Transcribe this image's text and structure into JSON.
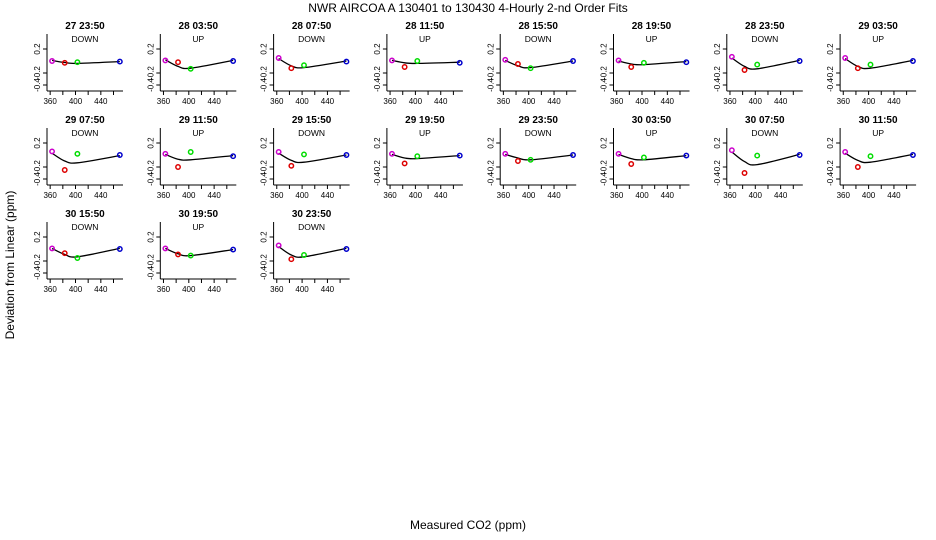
{
  "title": "NWR   AIRCOA A   130401 to 130430   4-Hourly 2-nd Order Fits",
  "xlabel": "Measured CO2 (ppm)",
  "ylabel": "Deviation from Linear (ppm)",
  "colors": {
    "axis": "#000000",
    "curve": "#000000",
    "standard_colors": [
      "#cc00cc",
      "#dd0000",
      "#00dd00",
      "#0000cc"
    ]
  },
  "chart_data": {
    "type": "scatter",
    "layout": "grid 8 columns",
    "xlim": [
      355,
      475
    ],
    "ylim": [
      -0.5,
      0.45
    ],
    "x_ticks": [
      360,
      400,
      440
    ],
    "x_tick_labels": [
      "360",
      "400",
      "440"
    ],
    "x_minor_ticks": [
      380,
      420,
      460
    ],
    "y_ticks": [
      0.2,
      -0.2,
      -0.4
    ],
    "y_tick_labels": [
      "0.2",
      "-0.2",
      "-0.4"
    ],
    "standards_x": [
      363,
      383,
      403,
      470
    ],
    "panels": [
      {
        "title": "27 23:50",
        "direction": "DOWN",
        "points": [
          0.0,
          -0.03,
          -0.02,
          -0.01
        ],
        "curve": [
          0.01,
          -0.025,
          -0.04,
          -0.01
        ]
      },
      {
        "title": "28 03:50",
        "direction": "UP",
        "points": [
          0.01,
          -0.02,
          -0.13,
          0.0
        ],
        "curve": [
          0.02,
          -0.09,
          -0.12,
          0.01
        ]
      },
      {
        "title": "28 07:50",
        "direction": "DOWN",
        "points": [
          0.05,
          -0.12,
          -0.07,
          -0.01
        ],
        "curve": [
          0.04,
          -0.08,
          -0.11,
          0.0
        ]
      },
      {
        "title": "28 11:50",
        "direction": "UP",
        "points": [
          0.01,
          -0.1,
          0.0,
          -0.03
        ],
        "curve": [
          0.01,
          -0.03,
          -0.04,
          -0.02
        ]
      },
      {
        "title": "28 15:50",
        "direction": "DOWN",
        "points": [
          0.02,
          -0.05,
          -0.12,
          0.0
        ],
        "curve": [
          0.01,
          -0.08,
          -0.11,
          0.0
        ]
      },
      {
        "title": "28 19:50",
        "direction": "UP",
        "points": [
          0.01,
          -0.1,
          -0.03,
          -0.02
        ],
        "curve": [
          0.0,
          -0.05,
          -0.06,
          -0.01
        ]
      },
      {
        "title": "28 23:50",
        "direction": "DOWN",
        "points": [
          0.07,
          -0.15,
          -0.06,
          0.0
        ],
        "curve": [
          0.05,
          -0.09,
          -0.13,
          0.01
        ]
      },
      {
        "title": "29 03:50",
        "direction": "UP",
        "points": [
          0.05,
          -0.12,
          -0.06,
          0.0
        ],
        "curve": [
          0.04,
          -0.09,
          -0.12,
          0.01
        ]
      },
      {
        "title": "29 07:50",
        "direction": "DOWN",
        "points": [
          0.06,
          -0.25,
          0.02,
          0.0
        ],
        "curve": [
          0.03,
          -0.1,
          -0.13,
          -0.01
        ]
      },
      {
        "title": "29 11:50",
        "direction": "UP",
        "points": [
          0.02,
          -0.2,
          0.05,
          -0.02
        ],
        "curve": [
          0.01,
          -0.07,
          -0.08,
          -0.01
        ]
      },
      {
        "title": "29 15:50",
        "direction": "DOWN",
        "points": [
          0.05,
          -0.18,
          0.01,
          0.0
        ],
        "curve": [
          0.03,
          -0.09,
          -0.12,
          0.0
        ]
      },
      {
        "title": "29 19:50",
        "direction": "UP",
        "points": [
          0.02,
          -0.14,
          -0.02,
          -0.01
        ],
        "curve": [
          0.01,
          -0.05,
          -0.06,
          -0.01
        ]
      },
      {
        "title": "29 23:50",
        "direction": "DOWN",
        "points": [
          0.02,
          -0.1,
          -0.08,
          0.0
        ],
        "curve": [
          0.01,
          -0.05,
          -0.08,
          0.0
        ]
      },
      {
        "title": "30 03:50",
        "direction": "UP",
        "points": [
          0.02,
          -0.15,
          -0.04,
          -0.01
        ],
        "curve": [
          0.01,
          -0.06,
          -0.08,
          -0.01
        ]
      },
      {
        "title": "30 07:50",
        "direction": "DOWN",
        "points": [
          0.08,
          -0.3,
          -0.01,
          0.0
        ],
        "curve": [
          0.05,
          -0.11,
          -0.16,
          0.01
        ]
      },
      {
        "title": "30 11:50",
        "direction": "UP",
        "points": [
          0.05,
          -0.2,
          -0.02,
          0.0
        ],
        "curve": [
          0.03,
          -0.09,
          -0.12,
          0.01
        ]
      },
      {
        "title": "30 15:50",
        "direction": "DOWN",
        "points": [
          0.01,
          -0.07,
          -0.15,
          0.0
        ],
        "curve": [
          0.01,
          -0.09,
          -0.13,
          0.01
        ]
      },
      {
        "title": "30 19:50",
        "direction": "UP",
        "points": [
          0.01,
          -0.09,
          -0.11,
          -0.01
        ],
        "curve": [
          0.01,
          -0.08,
          -0.11,
          -0.01
        ]
      },
      {
        "title": "30 23:50",
        "direction": "DOWN",
        "points": [
          0.06,
          -0.17,
          -0.1,
          0.0
        ],
        "curve": [
          0.04,
          -0.1,
          -0.13,
          0.01
        ]
      }
    ]
  }
}
